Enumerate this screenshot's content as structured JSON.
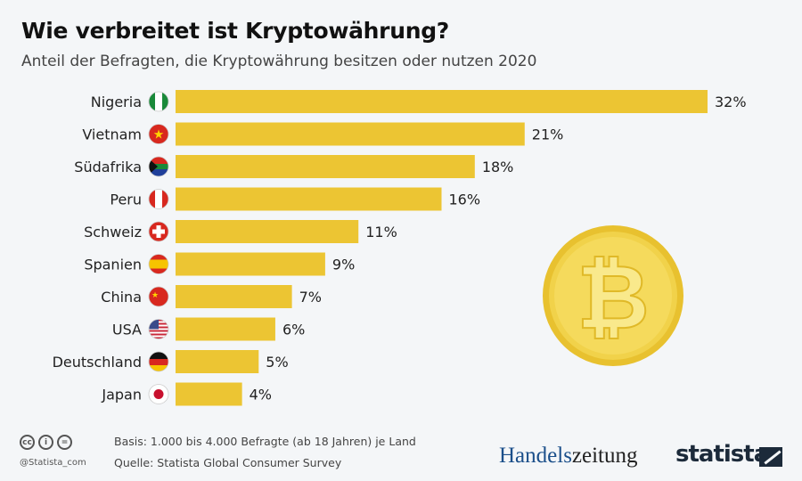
{
  "title": "Wie verbreitet ist Kryptowährung?",
  "subtitle": "Anteil der Befragten, die Kryptowährung besitzen oder nutzen 2020",
  "colors": {
    "bar": "#ecc533",
    "coin": "#f1d24a"
  },
  "chart_data": {
    "type": "bar",
    "orientation": "horizontal",
    "categories": [
      "Nigeria",
      "Vietnam",
      "Südafrika",
      "Peru",
      "Schweiz",
      "Spanien",
      "China",
      "USA",
      "Deutschland",
      "Japan"
    ],
    "values": [
      32,
      21,
      18,
      16,
      11,
      9,
      7,
      6,
      5,
      4
    ],
    "labels": [
      "32%",
      "21%",
      "18%",
      "16%",
      "11%",
      "9%",
      "7%",
      "6%",
      "5%",
      "4%"
    ],
    "unit": "%",
    "grid": false,
    "flag_icons": [
      "nigeria-flag",
      "vietnam-flag",
      "south-africa-flag",
      "peru-flag",
      "switzerland-flag",
      "spain-flag",
      "china-flag",
      "usa-flag",
      "germany-flag",
      "japan-flag"
    ]
  },
  "footer": {
    "basis": "Basis: 1.000 bis 4.000 Befragte (ab 18 Jahren) je Land",
    "source": "Quelle: Statista Global Consumer Survey",
    "handle": "@Statista_com",
    "cc_icons": [
      "cc",
      "i",
      "="
    ],
    "logo_handelszeitung_a": "Handels",
    "logo_handelszeitung_b": "zeitung",
    "logo_statista": "statista"
  }
}
